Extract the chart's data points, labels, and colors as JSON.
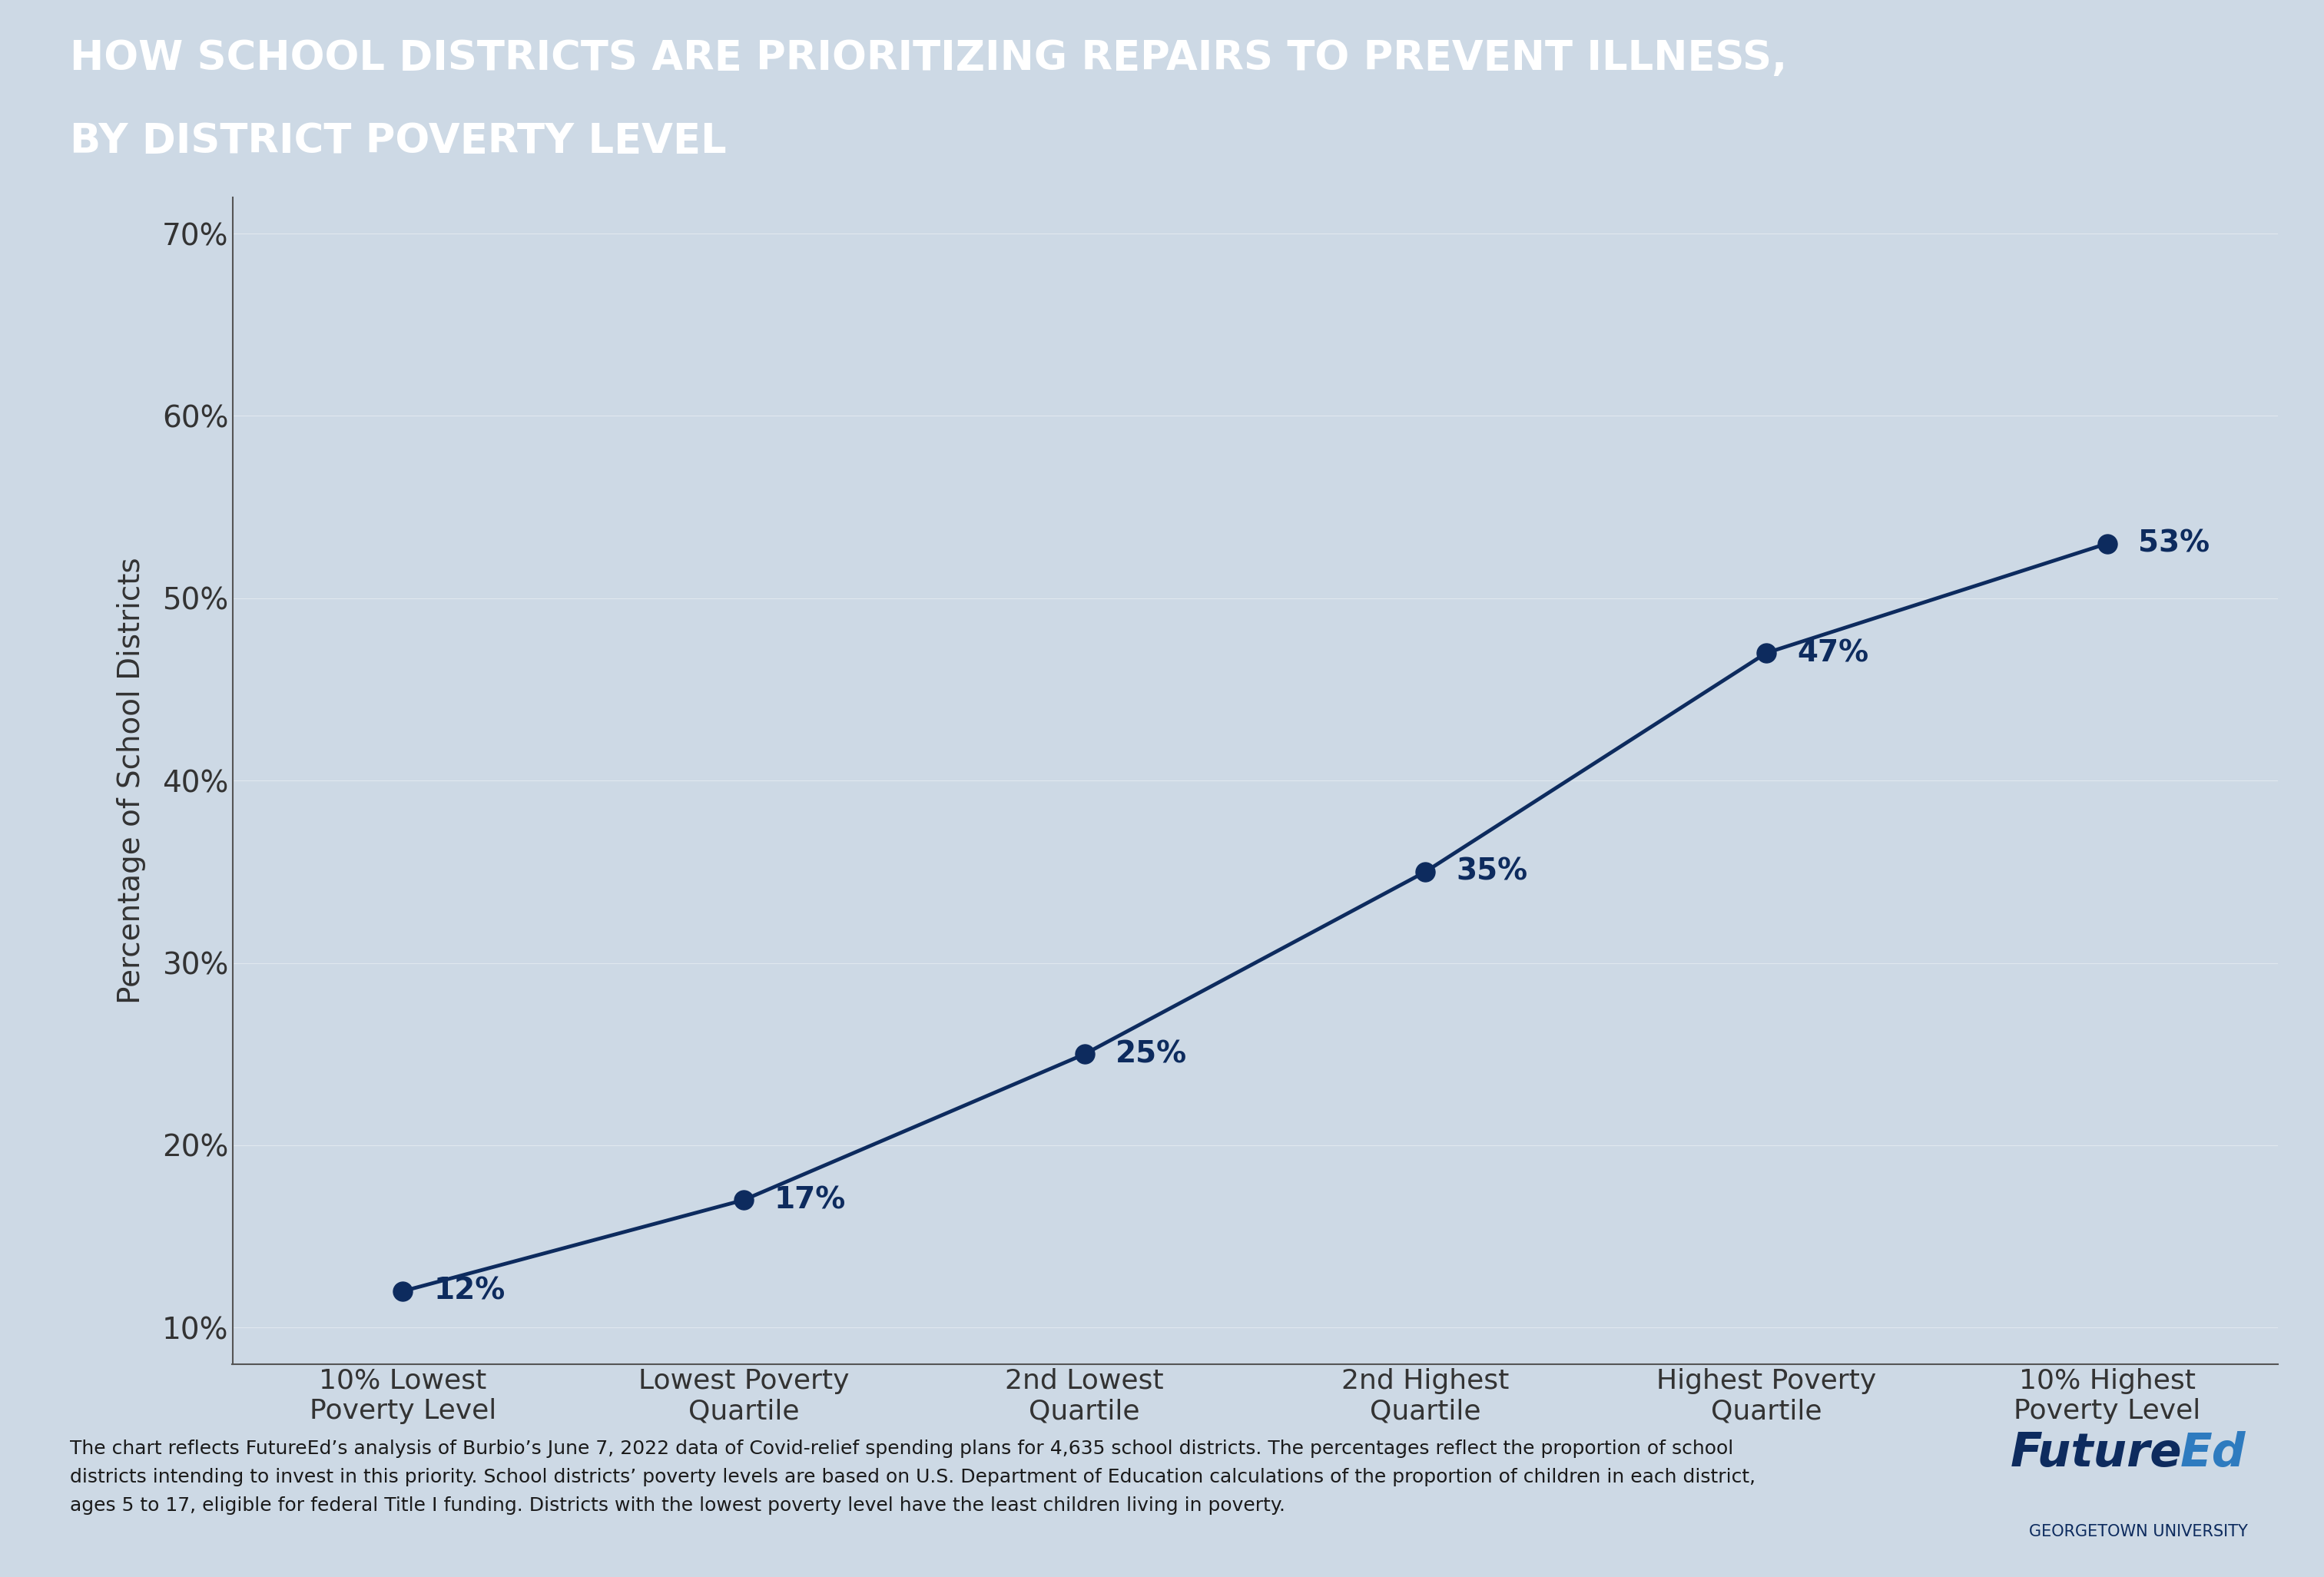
{
  "title_line1": "HOW SCHOOL DISTRICTS ARE PRIORITIZING REPAIRS TO PREVENT ILLNESS,",
  "title_line2": "BY DISTRICT POVERTY LEVEL",
  "title_bg_color": "#0d2b5e",
  "title_text_color": "#ffffff",
  "chart_bg_color": "#cdd9e5",
  "plot_bg_color": "#cdd9e5",
  "categories": [
    "10% Lowest\nPoverty Level",
    "Lowest Poverty\nQuartile",
    "2nd Lowest\nQuartile",
    "2nd Highest\nQuartile",
    "Highest Poverty\nQuartile",
    "10% Highest\nPoverty Level"
  ],
  "values": [
    12,
    17,
    25,
    35,
    47,
    53
  ],
  "line_color": "#0d2b5e",
  "marker_color": "#0d2b5e",
  "ylabel": "Percentage of School Districts",
  "yticks": [
    10,
    20,
    30,
    40,
    50,
    60,
    70
  ],
  "ytick_labels": [
    "10%",
    "20%",
    "30%",
    "40%",
    "50%",
    "60%",
    "70%"
  ],
  "ylim": [
    8,
    72
  ],
  "data_labels": [
    "12%",
    "17%",
    "25%",
    "35%",
    "47%",
    "53%"
  ],
  "footnote": "The chart reflects FutureEd’s analysis of Burbio’s June 7, 2022 data of Covid-relief spending plans for 4,635 school districts. The percentages reflect the proportion of school\ndistricts intending to invest in this priority. School districts’ poverty levels are based on U.S. Department of Education calculations of the proportion of children in each district,\nages 5 to 17, eligible for federal Title I funding. Districts with the lowest poverty level have the least children living in poverty.",
  "footnote_color": "#1a1a1a",
  "futureed_color1": "#0d2b5e",
  "futureed_color2": "#2e7bbf",
  "georgetown_text": "GEORGETOWN UNIVERSITY",
  "line_width": 3.5,
  "marker_size": 18
}
